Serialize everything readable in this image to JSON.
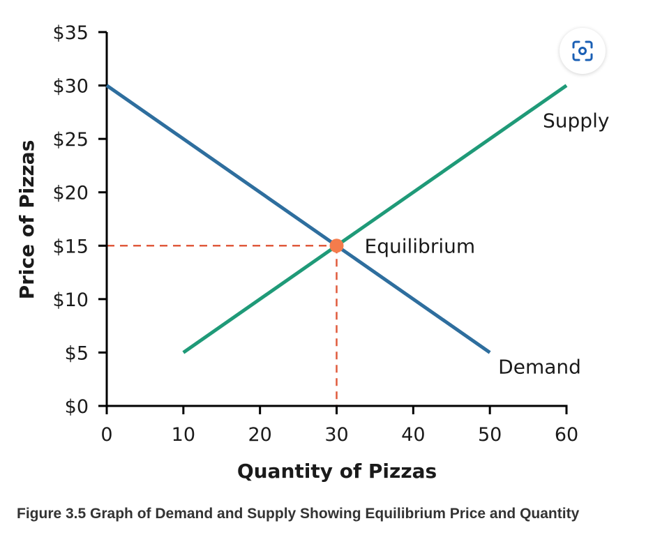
{
  "chart_data": {
    "type": "line",
    "xlabel": "Quantity of Pizzas",
    "ylabel": "Price of Pizzas",
    "xlim": [
      0,
      60
    ],
    "ylim": [
      0,
      35
    ],
    "x_ticks": [
      {
        "value": 0,
        "label": "0"
      },
      {
        "value": 10,
        "label": "10"
      },
      {
        "value": 20,
        "label": "20"
      },
      {
        "value": 30,
        "label": "30"
      },
      {
        "value": 40,
        "label": "40"
      },
      {
        "value": 50,
        "label": "50"
      },
      {
        "value": 60,
        "label": "60"
      }
    ],
    "y_ticks": [
      {
        "value": 0,
        "label": "$0"
      },
      {
        "value": 5,
        "label": "$5"
      },
      {
        "value": 10,
        "label": "$10"
      },
      {
        "value": 15,
        "label": "$15"
      },
      {
        "value": 20,
        "label": "$20"
      },
      {
        "value": 25,
        "label": "$25"
      },
      {
        "value": 30,
        "label": "$30"
      },
      {
        "value": 35,
        "label": "$35"
      }
    ],
    "grid": false,
    "series": [
      {
        "name": "Demand",
        "color": "#2e6e9e",
        "points": [
          [
            0,
            30
          ],
          [
            50,
            5
          ]
        ]
      },
      {
        "name": "Supply",
        "color": "#1f9a78",
        "points": [
          [
            10,
            5
          ],
          [
            60,
            30
          ]
        ]
      }
    ],
    "equilibrium": {
      "label": "Equilibrium",
      "x": 30,
      "y": 15,
      "color": "#f47c4c",
      "guide_color": "#e05a3c"
    }
  },
  "caption": "Figure 3.5 Graph of Demand and Supply Showing Equilibrium Price and Quantity",
  "lens_button": {
    "icon": "lens-icon"
  }
}
